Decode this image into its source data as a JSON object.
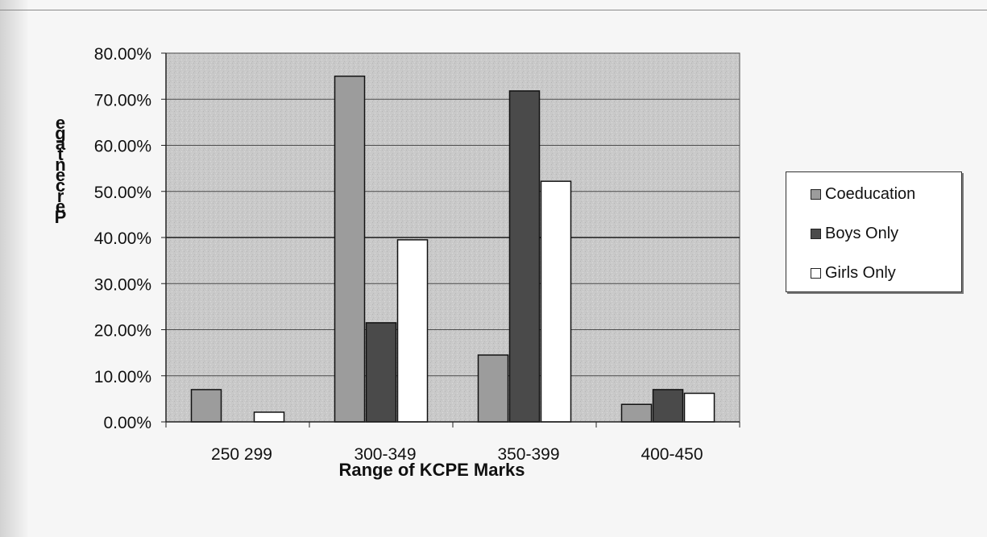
{
  "chart_data": {
    "type": "bar",
    "title": "",
    "xlabel": "Range of  KCPE Marks",
    "ylabel": "Percentage",
    "ylim": [
      0,
      0.8
    ],
    "yticks": [
      "0.00%",
      "10.00%",
      "20.00%",
      "30.00%",
      "40.00%",
      "50.00%",
      "60.00%",
      "70.00%",
      "80.00%"
    ],
    "categories": [
      "250 299",
      "300-349",
      "350-399",
      "400-450"
    ],
    "series": [
      {
        "name": "Coeducation",
        "values": [
          0.07,
          0.75,
          0.145,
          0.038
        ],
        "color": "#9c9c9c"
      },
      {
        "name": "Boys Only",
        "values": [
          0.0,
          0.215,
          0.718,
          0.07
        ],
        "color": "#4a4a4a"
      },
      {
        "name": "Girls Only",
        "values": [
          0.021,
          0.395,
          0.522,
          0.062
        ],
        "color": "#ffffff"
      }
    ],
    "grid": true,
    "legend_position": "right"
  }
}
